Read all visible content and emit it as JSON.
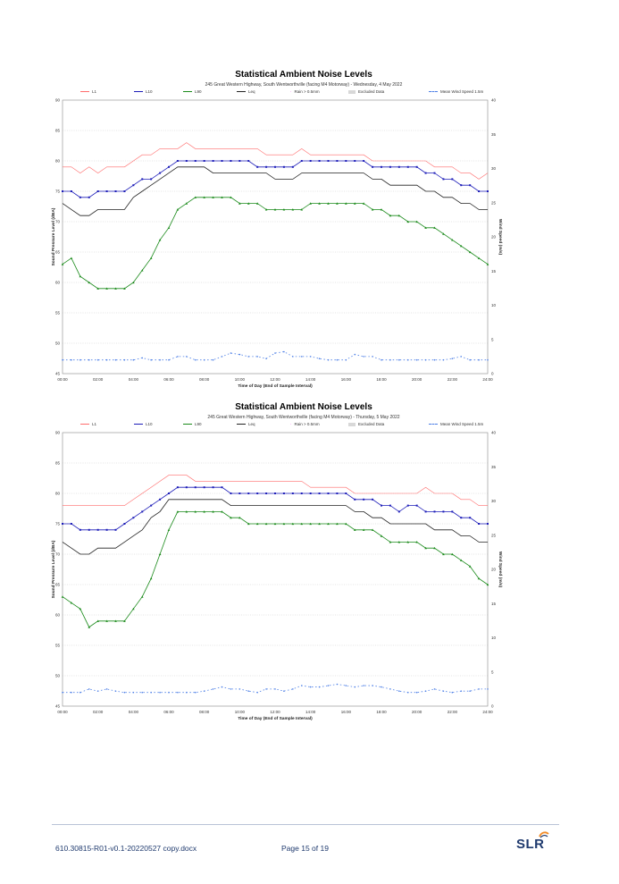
{
  "charts": [
    {
      "title": "Statistical Ambient Noise Levels",
      "subtitle": "245 Great Western Highway, South Wentworthville (facing M4 Motorway) - Wednesday, 4 May 2022",
      "xlabel": "Time of Day (End of Sample Interval)",
      "ylabel": "Sound Pressure Level (dBA)",
      "y2label": "Wind Speed (m/s)"
    },
    {
      "title": "Statistical Ambient Noise Levels",
      "subtitle": "245 Great Western Highway, South Wentworthville (facing M4 Motorway) - Thursday, 5 May 2022",
      "xlabel": "Time of Day (End of Sample Interval)",
      "ylabel": "Sound Pressure Level (dBA)",
      "y2label": "Wind Speed (m/s)"
    }
  ],
  "legend": {
    "l1": "L1",
    "l10": "L10",
    "l90": "L90",
    "leq": "Leq",
    "rain": "Rain > 0.5mm",
    "excluded": "Excluded Data",
    "wind": "Mean Wind Speed 1.5m"
  },
  "colors": {
    "l1": "#ff6b6b",
    "l10": "#1c1cb8",
    "l90": "#1a8a1a",
    "leq": "#222222",
    "rain": "#ff00ff",
    "wind": "#4d7fe6"
  },
  "chart_data": [
    {
      "type": "line",
      "title": "Statistical Ambient Noise Levels",
      "xlabel": "Time of Day (End of Sample Interval)",
      "ylabel": "Sound Pressure Level (dBA)",
      "y2label": "Wind Speed (m/s)",
      "x_ticks": [
        "00:00",
        "02:00",
        "04:00",
        "06:00",
        "08:00",
        "10:00",
        "12:00",
        "14:00",
        "16:00",
        "18:00",
        "20:00",
        "22:00",
        "24:00"
      ],
      "ylim": [
        45,
        90
      ],
      "y_ticks": [
        "45",
        "50",
        "55",
        "60",
        "65",
        "70",
        "75",
        "80",
        "85",
        "90"
      ],
      "y2lim": [
        0,
        40
      ],
      "y2_ticks": [
        "0",
        "5",
        "10",
        "15",
        "20",
        "25",
        "30",
        "35",
        "40"
      ],
      "x_hours": [
        0,
        0.5,
        1,
        1.5,
        2,
        2.5,
        3,
        3.5,
        4,
        4.5,
        5,
        5.5,
        6,
        6.5,
        7,
        7.5,
        8,
        8.5,
        9,
        9.5,
        10,
        10.5,
        11,
        11.5,
        12,
        12.5,
        13,
        13.5,
        14,
        14.5,
        15,
        15.5,
        16,
        16.5,
        17,
        17.5,
        18,
        18.5,
        19,
        19.5,
        20,
        20.5,
        21,
        21.5,
        22,
        22.5,
        23,
        23.5,
        24
      ],
      "series": [
        {
          "name": "L1",
          "values": [
            79,
            79,
            78,
            79,
            78,
            79,
            79,
            79,
            80,
            81,
            81,
            82,
            82,
            82,
            83,
            82,
            82,
            82,
            82,
            82,
            82,
            82,
            82,
            81,
            81,
            81,
            81,
            82,
            81,
            81,
            81,
            81,
            81,
            81,
            81,
            80,
            80,
            80,
            80,
            80,
            80,
            80,
            79,
            79,
            79,
            78,
            78,
            77,
            78
          ]
        },
        {
          "name": "L10",
          "values": [
            75,
            75,
            74,
            74,
            75,
            75,
            75,
            75,
            76,
            77,
            77,
            78,
            79,
            80,
            80,
            80,
            80,
            80,
            80,
            80,
            80,
            80,
            79,
            79,
            79,
            79,
            79,
            80,
            80,
            80,
            80,
            80,
            80,
            80,
            80,
            79,
            79,
            79,
            79,
            79,
            79,
            78,
            78,
            77,
            77,
            76,
            76,
            75,
            75
          ]
        },
        {
          "name": "Leq",
          "values": [
            73,
            72,
            71,
            71,
            72,
            72,
            72,
            72,
            74,
            75,
            76,
            77,
            78,
            79,
            79,
            79,
            79,
            78,
            78,
            78,
            78,
            78,
            78,
            78,
            77,
            77,
            77,
            78,
            78,
            78,
            78,
            78,
            78,
            78,
            78,
            77,
            77,
            76,
            76,
            76,
            76,
            75,
            75,
            74,
            74,
            73,
            73,
            72,
            72
          ]
        },
        {
          "name": "L90",
          "values": [
            63,
            64,
            61,
            60,
            59,
            59,
            59,
            59,
            60,
            62,
            64,
            67,
            69,
            72,
            73,
            74,
            74,
            74,
            74,
            74,
            73,
            73,
            73,
            72,
            72,
            72,
            72,
            72,
            73,
            73,
            73,
            73,
            73,
            73,
            73,
            72,
            72,
            71,
            71,
            70,
            70,
            69,
            69,
            68,
            67,
            66,
            65,
            64,
            63
          ]
        },
        {
          "name": "Mean Wind Speed 1.5m",
          "axis": "y2",
          "values": [
            2,
            2,
            2,
            2,
            2,
            2,
            2,
            2,
            2,
            2.3,
            2,
            2,
            2,
            2.5,
            2.5,
            2,
            2,
            2,
            2.5,
            3,
            2.8,
            2.5,
            2.5,
            2.2,
            3,
            3.2,
            2.5,
            2.5,
            2.5,
            2.2,
            2,
            2,
            2,
            2.8,
            2.5,
            2.5,
            2,
            2,
            2,
            2,
            2,
            2,
            2,
            2,
            2.2,
            2.5,
            2,
            2,
            2
          ]
        }
      ]
    },
    {
      "type": "line",
      "title": "Statistical Ambient Noise Levels",
      "xlabel": "Time of Day (End of Sample Interval)",
      "ylabel": "Sound Pressure Level (dBA)",
      "y2label": "Wind Speed (m/s)",
      "x_ticks": [
        "00:00",
        "02:00",
        "04:00",
        "06:00",
        "08:00",
        "10:00",
        "12:00",
        "14:00",
        "16:00",
        "18:00",
        "20:00",
        "22:00",
        "24:00"
      ],
      "ylim": [
        45,
        90
      ],
      "y_ticks": [
        "45",
        "50",
        "55",
        "60",
        "65",
        "70",
        "75",
        "80",
        "85",
        "90"
      ],
      "y2lim": [
        0,
        40
      ],
      "y2_ticks": [
        "0",
        "5",
        "10",
        "15",
        "20",
        "25",
        "30",
        "35",
        "40"
      ],
      "x_hours": [
        0,
        0.5,
        1,
        1.5,
        2,
        2.5,
        3,
        3.5,
        4,
        4.5,
        5,
        5.5,
        6,
        6.5,
        7,
        7.5,
        8,
        8.5,
        9,
        9.5,
        10,
        10.5,
        11,
        11.5,
        12,
        12.5,
        13,
        13.5,
        14,
        14.5,
        15,
        15.5,
        16,
        16.5,
        17,
        17.5,
        18,
        18.5,
        19,
        19.5,
        20,
        20.5,
        21,
        21.5,
        22,
        22.5,
        23,
        23.5,
        24
      ],
      "series": [
        {
          "name": "L1",
          "values": [
            78,
            78,
            78,
            78,
            78,
            78,
            78,
            78,
            79,
            80,
            81,
            82,
            83,
            83,
            83,
            82,
            82,
            82,
            82,
            82,
            82,
            82,
            82,
            82,
            82,
            82,
            82,
            82,
            81,
            81,
            81,
            81,
            81,
            80,
            80,
            80,
            80,
            80,
            80,
            80,
            80,
            81,
            80,
            80,
            80,
            79,
            79,
            78,
            78
          ]
        },
        {
          "name": "L10",
          "values": [
            75,
            75,
            74,
            74,
            74,
            74,
            74,
            75,
            76,
            77,
            78,
            79,
            80,
            81,
            81,
            81,
            81,
            81,
            81,
            80,
            80,
            80,
            80,
            80,
            80,
            80,
            80,
            80,
            80,
            80,
            80,
            80,
            80,
            79,
            79,
            79,
            78,
            78,
            77,
            78,
            78,
            77,
            77,
            77,
            77,
            76,
            76,
            75,
            75
          ]
        },
        {
          "name": "Leq",
          "values": [
            72,
            71,
            70,
            70,
            71,
            71,
            71,
            72,
            73,
            74,
            76,
            77,
            79,
            79,
            79,
            79,
            79,
            79,
            79,
            78,
            78,
            78,
            78,
            78,
            78,
            78,
            78,
            78,
            78,
            78,
            78,
            78,
            78,
            77,
            77,
            76,
            76,
            75,
            75,
            75,
            75,
            75,
            74,
            74,
            74,
            73,
            73,
            72,
            72
          ]
        },
        {
          "name": "L90",
          "values": [
            63,
            62,
            61,
            58,
            59,
            59,
            59,
            59,
            61,
            63,
            66,
            70,
            74,
            77,
            77,
            77,
            77,
            77,
            77,
            76,
            76,
            75,
            75,
            75,
            75,
            75,
            75,
            75,
            75,
            75,
            75,
            75,
            75,
            74,
            74,
            74,
            73,
            72,
            72,
            72,
            72,
            71,
            71,
            70,
            70,
            69,
            68,
            66,
            65
          ]
        },
        {
          "name": "Mean Wind Speed 1.5m",
          "axis": "y2",
          "values": [
            2,
            2,
            2,
            2.5,
            2.2,
            2.5,
            2.2,
            2,
            2,
            2,
            2,
            2,
            2,
            2,
            2,
            2,
            2.2,
            2.5,
            2.8,
            2.5,
            2.5,
            2.2,
            2,
            2.5,
            2.5,
            2.2,
            2.5,
            3,
            2.8,
            2.8,
            3,
            3.2,
            3,
            2.8,
            3,
            3,
            2.8,
            2.5,
            2.2,
            2,
            2,
            2.2,
            2.5,
            2.2,
            2,
            2.2,
            2.2,
            2.5,
            2.5
          ]
        }
      ]
    }
  ],
  "footer": {
    "doc": "610.30815-R01-v0.1-20220527 copy.docx",
    "page": "Page 15 of 19",
    "logo": "SLR"
  }
}
